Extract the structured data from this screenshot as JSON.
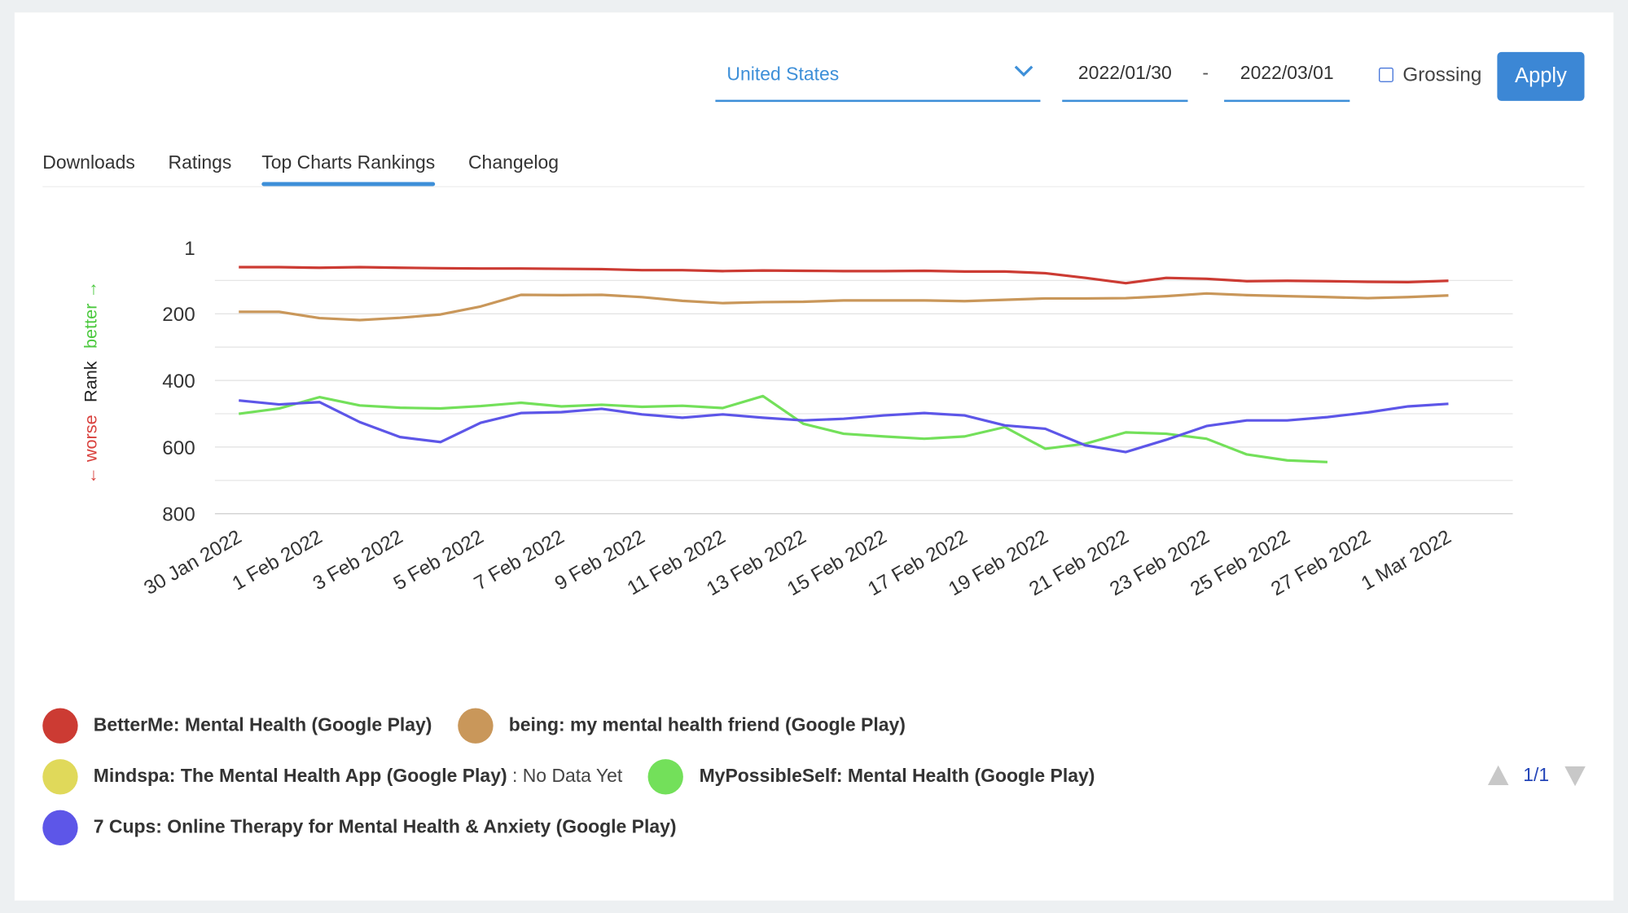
{
  "filters": {
    "country": "United States",
    "start_date": "2022/01/30",
    "date_separator": "-",
    "end_date": "2022/03/01",
    "grossing_label": "Grossing",
    "apply_label": "Apply"
  },
  "tabs": [
    "Downloads",
    "Ratings",
    "Top Charts Rankings",
    "Changelog"
  ],
  "active_tab": 2,
  "chart_data": {
    "type": "line",
    "y_label_parts": [
      {
        "text": "← worse",
        "color": "#d9423e"
      },
      {
        "text": "Rank",
        "color": "#222"
      },
      {
        "text": "better →",
        "color": "#4cc93f"
      }
    ],
    "categories": [
      "30 Jan 2022",
      null,
      "1 Feb 2022",
      null,
      "3 Feb 2022",
      null,
      "5 Feb 2022",
      null,
      "7 Feb 2022",
      null,
      "9 Feb 2022",
      null,
      "11 Feb 2022",
      null,
      "13 Feb 2022",
      null,
      "15 Feb 2022",
      null,
      "17 Feb 2022",
      null,
      "19 Feb 2022",
      null,
      "21 Feb 2022",
      null,
      "23 Feb 2022",
      null,
      "25 Feb 2022",
      null,
      "27 Feb 2022",
      null,
      "1 Mar 2022"
    ],
    "ylim": [
      1,
      800
    ],
    "y_inverted": true,
    "yticks": [
      1,
      200,
      400,
      600,
      800
    ],
    "minor_yticks": [
      100,
      300,
      500,
      700
    ],
    "grid": true,
    "series": [
      {
        "name": "BetterMe: Mental Health (Google Play)",
        "color": "#cc3b33",
        "values": [
          60,
          60,
          62,
          60,
          62,
          63,
          64,
          64,
          65,
          66,
          69,
          69,
          72,
          70,
          71,
          72,
          72,
          71,
          73,
          73,
          78,
          92,
          108,
          92,
          95,
          102,
          101,
          102,
          104,
          105,
          101
        ]
      },
      {
        "name": "being: my mental health friend (Google Play)",
        "color": "#c9975a",
        "values": [
          194,
          194,
          213,
          219,
          212,
          202,
          178,
          143,
          144,
          143,
          150,
          161,
          168,
          165,
          164,
          160,
          160,
          160,
          162,
          158,
          154,
          154,
          153,
          147,
          139,
          144,
          147,
          150,
          153,
          150,
          145
        ]
      },
      {
        "name": "Mindspa: The Mental Health App (Google Play)",
        "color": "#e0d95a",
        "status": ": No Data Yet",
        "values": [
          null,
          null,
          null,
          null,
          null,
          null,
          null,
          null,
          null,
          null,
          null,
          null,
          null,
          null,
          null,
          null,
          null,
          null,
          null,
          null,
          null,
          null,
          null,
          null,
          null,
          null,
          null,
          null,
          null,
          null,
          null
        ]
      },
      {
        "name": "MyPossibleSelf: Mental Health (Google Play)",
        "color": "#73e05a",
        "values": [
          500,
          484,
          450,
          475,
          482,
          484,
          477,
          467,
          478,
          473,
          479,
          476,
          483,
          447,
          530,
          560,
          568,
          575,
          568,
          540,
          605,
          590,
          556,
          560,
          575,
          622,
          640,
          645,
          null,
          null,
          null
        ]
      },
      {
        "name": "7 Cups: Online Therapy for Mental Health & Anxiety (Google Play)",
        "color": "#5d56e8",
        "values": [
          460,
          472,
          465,
          525,
          570,
          585,
          527,
          498,
          495,
          485,
          502,
          512,
          502,
          512,
          520,
          515,
          505,
          498,
          505,
          535,
          545,
          595,
          615,
          578,
          537,
          520,
          520,
          510,
          496,
          478,
          470
        ]
      }
    ]
  },
  "pagination": "1/1"
}
